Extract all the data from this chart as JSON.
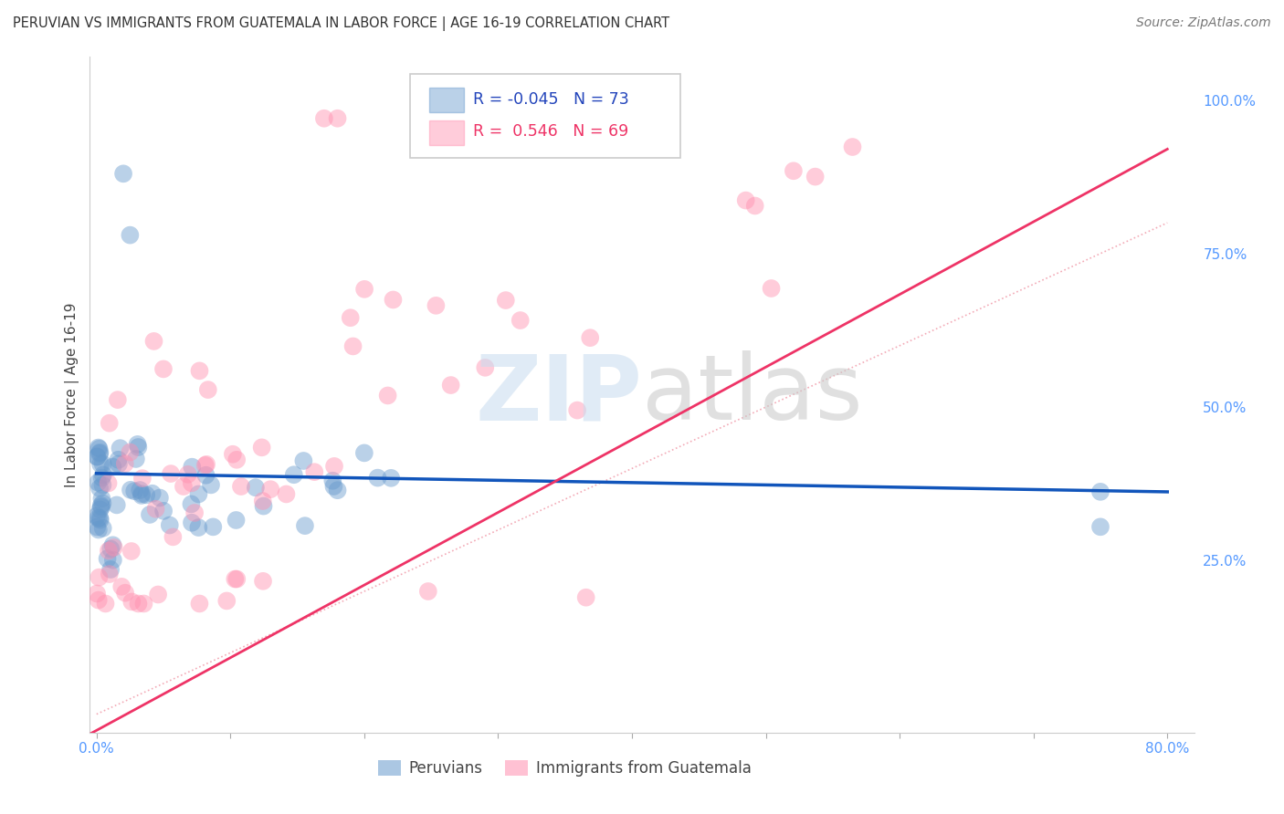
{
  "title": "PERUVIAN VS IMMIGRANTS FROM GUATEMALA IN LABOR FORCE | AGE 16-19 CORRELATION CHART",
  "source": "Source: ZipAtlas.com",
  "ylabel": "In Labor Force | Age 16-19",
  "peruvian_color": "#6699CC",
  "guatemala_color": "#FF8FAF",
  "peruvian_R": -0.045,
  "peruvian_N": 73,
  "guatemala_R": 0.546,
  "guatemala_N": 69,
  "peru_line_x": [
    0.0,
    0.8
  ],
  "peru_line_y": [
    0.392,
    0.362
  ],
  "guat_line_x": [
    -0.02,
    0.8
  ],
  "guat_line_y": [
    -0.05,
    0.92
  ],
  "diag_line_x": [
    0.0,
    0.8
  ],
  "diag_line_y": [
    0.0,
    0.8
  ],
  "xlim": [
    -0.005,
    0.82
  ],
  "ylim": [
    -0.03,
    1.07
  ],
  "ytick_positions": [
    0.0,
    0.25,
    0.5,
    0.75,
    1.0
  ],
  "ytick_labels": [
    "",
    "25.0%",
    "50.0%",
    "75.0%",
    "100.0%"
  ],
  "xtick_positions": [
    0.0,
    0.1,
    0.2,
    0.3,
    0.4,
    0.5,
    0.6,
    0.7,
    0.8
  ],
  "xtick_labels": [
    "0.0%",
    "",
    "",
    "",
    "",
    "",
    "",
    "",
    "80.0%"
  ],
  "tick_color": "#5599FF",
  "grid_color": "#DDDDDD",
  "watermark_zip_color": "#C8DCEF",
  "watermark_atlas_color": "#C8C8C8"
}
